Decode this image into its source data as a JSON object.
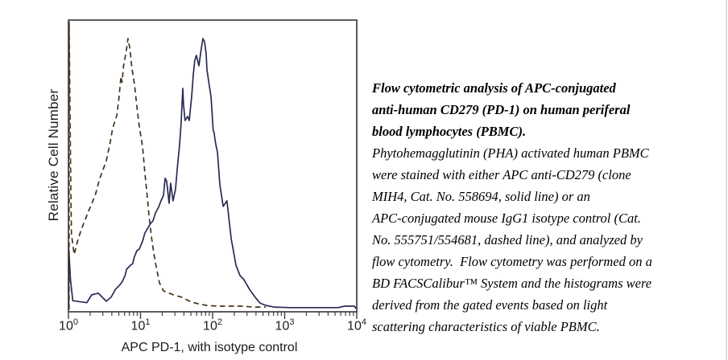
{
  "chart": {
    "y_label": "Relative Cell Number",
    "x_label": "APC PD-1, with isotype control",
    "colors": {
      "solid_line": "#2a2a55",
      "dashed_line": "#473118",
      "axis": "#404040"
    }
  },
  "chart_data": {
    "type": "line",
    "subtype": "flow-cytometry-histogram",
    "title": "",
    "xlabel": "APC PD-1, with isotype control",
    "ylabel": "Relative Cell Number",
    "x_scale": "log10",
    "xlim": [
      1,
      10000
    ],
    "ylim_percent": [
      0,
      100
    ],
    "x_tick_exponents": [
      "0",
      "1",
      "2",
      "3",
      "4"
    ],
    "x_tick_base": "10",
    "grid": false,
    "legend": "none",
    "series": [
      {
        "name": "APC anti-CD279 (clone MIH4, Cat. No. 558694)",
        "style": "solid",
        "color": "#2a2a55",
        "points": [
          [
            1.01,
            0
          ],
          [
            1.01,
            21
          ],
          [
            1.07,
            10
          ],
          [
            1.15,
            3
          ],
          [
            1.8,
            2.3
          ],
          [
            2.1,
            5
          ],
          [
            2.6,
            5.6
          ],
          [
            2.95,
            4.2
          ],
          [
            3.35,
            2.8
          ],
          [
            3.9,
            4.2
          ],
          [
            4.5,
            7
          ],
          [
            5.1,
            8.3
          ],
          [
            5.6,
            9.7
          ],
          [
            6.1,
            11.7
          ],
          [
            6.4,
            13.9
          ],
          [
            7.3,
            15.3
          ],
          [
            7.8,
            15.8
          ],
          [
            8.2,
            18.1
          ],
          [
            8.9,
            20.3
          ],
          [
            9.6,
            20.8
          ],
          [
            10.7,
            23.6
          ],
          [
            11.5,
            26.4
          ],
          [
            12.4,
            27.8
          ],
          [
            13.8,
            29.7
          ],
          [
            14.9,
            30.6
          ],
          [
            16.1,
            33.3
          ],
          [
            17.8,
            35.3
          ],
          [
            19.2,
            37.5
          ],
          [
            20.8,
            39.4
          ],
          [
            21.9,
            45.3
          ],
          [
            23,
            44.4
          ],
          [
            24.9,
            36.7
          ],
          [
            26.2,
            43.6
          ],
          [
            28.3,
            37.5
          ],
          [
            30.6,
            41.7
          ],
          [
            32.3,
            48.6
          ],
          [
            34.8,
            56.9
          ],
          [
            36.6,
            64.4
          ],
          [
            38.6,
            76.4
          ],
          [
            39.5,
            70.8
          ],
          [
            41.5,
            65.3
          ],
          [
            45,
            66.7
          ],
          [
            47.4,
            65.3
          ],
          [
            51.2,
            73.6
          ],
          [
            53.9,
            81.1
          ],
          [
            56.7,
            86.1
          ],
          [
            59.7,
            87.8
          ],
          [
            64.6,
            84.2
          ],
          [
            69.8,
            90.3
          ],
          [
            73.5,
            93.6
          ],
          [
            77.4,
            92.5
          ],
          [
            81.5,
            88.3
          ],
          [
            83.6,
            82.8
          ],
          [
            90.2,
            77.2
          ],
          [
            95,
            73.6
          ],
          [
            102,
            61.7
          ],
          [
            105,
            61.1
          ],
          [
            108,
            58.6
          ],
          [
            111,
            56.9
          ],
          [
            117,
            54.2
          ],
          [
            126,
            43.1
          ],
          [
            140,
            35.6
          ],
          [
            158,
            37.5
          ],
          [
            181,
            24.4
          ],
          [
            211,
            15.3
          ],
          [
            240,
            11.7
          ],
          [
            272,
            10.3
          ],
          [
            326,
            6.9
          ],
          [
            390,
            4.2
          ],
          [
            454,
            2.2
          ],
          [
            545,
            1.4
          ],
          [
            707,
            0.8
          ],
          [
            1180,
            0.6
          ],
          [
            3000,
            0.6
          ],
          [
            5500,
            0.6
          ],
          [
            6800,
            1.1
          ],
          [
            9300,
            1.1
          ],
          [
            9700,
            0.4
          ],
          [
            10000,
            0.3
          ]
        ]
      },
      {
        "name": "APC-conjugated mouse IgG1 isotype control (Cat. No. 555751/554681)",
        "style": "dashed",
        "color": "#473118",
        "points": [
          [
            1.02,
            0
          ],
          [
            1.02,
            99.4
          ],
          [
            1.08,
            40
          ],
          [
            1.1,
            26
          ],
          [
            1.2,
            19
          ],
          [
            1.35,
            24
          ],
          [
            1.5,
            27.5
          ],
          [
            1.9,
            33.9
          ],
          [
            2.35,
            39.4
          ],
          [
            2.7,
            45
          ],
          [
            3.35,
            51.4
          ],
          [
            3.8,
            57.8
          ],
          [
            4.1,
            62.5
          ],
          [
            4.7,
            67.2
          ],
          [
            5.05,
            73.6
          ],
          [
            5.35,
            80.5
          ],
          [
            5.55,
            78.5
          ],
          [
            5.8,
            84
          ],
          [
            6.05,
            86.5
          ],
          [
            6.35,
            89.4
          ],
          [
            6.7,
            93.6
          ],
          [
            7.1,
            90.3
          ],
          [
            7.6,
            83.3
          ],
          [
            8.25,
            77.8
          ],
          [
            8.9,
            70
          ],
          [
            9.6,
            63.3
          ],
          [
            10.7,
            56.1
          ],
          [
            11.5,
            47.2
          ],
          [
            12.4,
            38.9
          ],
          [
            13.1,
            32.5
          ],
          [
            14.2,
            25
          ],
          [
            15.3,
            19.4
          ],
          [
            16.5,
            14.7
          ],
          [
            18.3,
            9.2
          ],
          [
            20.8,
            6.4
          ],
          [
            23.7,
            5.8
          ],
          [
            27,
            5.3
          ],
          [
            30.7,
            4.7
          ],
          [
            35.7,
            4.4
          ],
          [
            41.5,
            3.6
          ],
          [
            51.2,
            2.5
          ],
          [
            64.6,
            1.9
          ],
          [
            81.5,
            1.4
          ],
          [
            116,
            1.1
          ],
          [
            171,
            1.1
          ],
          [
            251,
            1.1
          ],
          [
            370,
            0.8
          ],
          [
            545,
            0.8
          ]
        ]
      }
    ]
  },
  "caption": {
    "title_lines": [
      "Flow cytometric analysis of APC-conjugated",
      "anti-human CD279 (PD-1) on human periferal",
      "blood lymphocytes (PBMC)."
    ],
    "body_lines": [
      "Phytohemagglutinin (PHA) activated human PBMC",
      "were stained with either APC anti-CD279 (clone",
      "MIH4, Cat. No. 558694, solid line) or an",
      "APC-conjugated mouse IgG1 isotype control (Cat.",
      "No. 555751/554681, dashed line), and analyzed by",
      "flow cytometry.  Flow cytometry was performed on a",
      "BD FACSCalibur™ System and the histograms were",
      "derived from the gated events based on light",
      "scattering characteristics of viable PBMC."
    ]
  }
}
